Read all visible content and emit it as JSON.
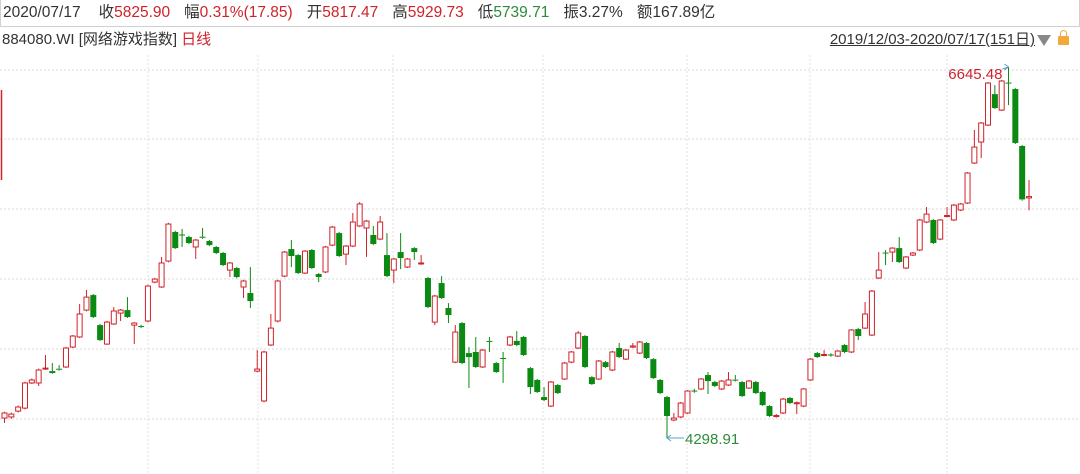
{
  "header": {
    "date": "2020/07/17",
    "fields": [
      {
        "label": "收",
        "value": "5825.90",
        "color": "#d0222a"
      },
      {
        "label": "幅",
        "value": "0.31%(17.85)",
        "color": "#d0222a"
      },
      {
        "label": "开",
        "value": "5817.47",
        "color": "#d0222a"
      },
      {
        "label": "高",
        "value": "5929.73",
        "color": "#d0222a"
      },
      {
        "label": "低",
        "value": "5739.71",
        "color": "#2e8b3a"
      },
      {
        "label": "振",
        "value": "3.27%",
        "color": "#333333"
      },
      {
        "label": "额",
        "value": "167.89亿",
        "color": "#333333"
      }
    ]
  },
  "subheader": {
    "symbol": "884080.WI [网络游戏指数]",
    "period": "日线",
    "range": "2019/12/03-2020/07/17(151日)",
    "dropdown_icon": "triangle-down-icon",
    "lock_icon": "lock-icon"
  },
  "chart_data": {
    "type": "candlestick",
    "up_color": "#d0222a",
    "down_color": "#0a8a12",
    "grid": true,
    "candle_format": [
      "open",
      "close",
      "high",
      "low"
    ],
    "annotations": {
      "max": {
        "label": "6645.48",
        "value": 6645.48,
        "index": 147
      },
      "min": {
        "label": "4298.91",
        "value": 4298.91,
        "index": 97
      }
    },
    "candles": [
      [
        4425,
        4457,
        4465,
        4394
      ],
      [
        4432,
        4450,
        4460,
        4420
      ],
      [
        4469,
        4495,
        4505,
        4460
      ],
      [
        4488,
        4647,
        4655,
        4480
      ],
      [
        4647,
        4666,
        4675,
        4640
      ],
      [
        4647,
        4729,
        4738,
        4628
      ],
      [
        4735,
        4741,
        4824,
        4730
      ],
      [
        4722,
        4710,
        4773,
        4705
      ],
      [
        4737,
        4733,
        4760,
        4725
      ],
      [
        4748,
        4868,
        4875,
        4742
      ],
      [
        4874,
        4944,
        4950,
        4868
      ],
      [
        4938,
        5083,
        5146,
        4932
      ],
      [
        5108,
        5190,
        5235,
        5100
      ],
      [
        5203,
        5064,
        5210,
        5058
      ],
      [
        5013,
        4918,
        5020,
        4912
      ],
      [
        4893,
        5032,
        5040,
        4888
      ],
      [
        5020,
        5102,
        5127,
        5014
      ],
      [
        5089,
        5108,
        5115,
        5039
      ],
      [
        5108,
        5064,
        5190,
        5058
      ],
      [
        5013,
        5026,
        5032,
        4893
      ],
      [
        5007,
        5001,
        5015,
        4995
      ],
      [
        5039,
        5260,
        5268,
        5030
      ],
      [
        5285,
        5304,
        5312,
        5278
      ],
      [
        5254,
        5406,
        5444,
        5248
      ],
      [
        5418,
        5652,
        5660,
        5410
      ],
      [
        5602,
        5500,
        5610,
        5494
      ],
      [
        5586,
        5580,
        5621,
        5507
      ],
      [
        5570,
        5532,
        5578,
        5525
      ],
      [
        5507,
        5551,
        5558,
        5431
      ],
      [
        5572,
        5566,
        5627,
        5558
      ],
      [
        5545,
        5519,
        5552,
        5512
      ],
      [
        5507,
        5469,
        5514,
        5462
      ],
      [
        5469,
        5393,
        5476,
        5386
      ],
      [
        5361,
        5406,
        5412,
        5317
      ],
      [
        5374,
        5317,
        5380,
        5310
      ],
      [
        5254,
        5292,
        5300,
        5184
      ],
      [
        5216,
        5165,
        5380,
        5121
      ],
      [
        4722,
        4735,
        4855,
        4715
      ],
      [
        4533,
        4843,
        4850,
        4525
      ],
      [
        4887,
        4994,
        5083,
        4880
      ],
      [
        5039,
        5292,
        5300,
        5030
      ],
      [
        5323,
        5475,
        5482,
        5316
      ],
      [
        5494,
        5450,
        5551,
        5380
      ],
      [
        5456,
        5342,
        5462,
        5336
      ],
      [
        5342,
        5481,
        5488,
        5336
      ],
      [
        5488,
        5374,
        5494,
        5368
      ],
      [
        5336,
        5317,
        5342,
        5285
      ],
      [
        5349,
        5507,
        5514,
        5342
      ],
      [
        5519,
        5633,
        5640,
        5512
      ],
      [
        5595,
        5450,
        5602,
        5444
      ],
      [
        5462,
        5513,
        5520,
        5393
      ],
      [
        5513,
        5665,
        5722,
        5506
      ],
      [
        5640,
        5779,
        5791,
        5633
      ],
      [
        5627,
        5671,
        5678,
        5444
      ],
      [
        5583,
        5526,
        5640,
        5519
      ],
      [
        5557,
        5665,
        5703,
        5550
      ],
      [
        5456,
        5323,
        5595,
        5316
      ],
      [
        5361,
        5431,
        5438,
        5279
      ],
      [
        5475,
        5437,
        5595,
        5367
      ],
      [
        5380,
        5431,
        5438,
        5374
      ],
      [
        5500,
        5475,
        5506,
        5425
      ],
      [
        5400,
        5406,
        5456,
        5394
      ],
      [
        5311,
        5127,
        5318,
        5120
      ],
      [
        5032,
        5197,
        5204,
        5013
      ],
      [
        5279,
        5184,
        5323,
        5178
      ],
      [
        5121,
        5077,
        5152,
        5026
      ],
      [
        4779,
        4969,
        5013,
        4772
      ],
      [
        5026,
        4773,
        5032,
        4766
      ],
      [
        4836,
        4811,
        4874,
        4615
      ],
      [
        4843,
        4748,
        4938,
        4742
      ],
      [
        4748,
        4855,
        4862,
        4742
      ],
      [
        4913,
        4907,
        4938,
        4843
      ],
      [
        4773,
        4716,
        4780,
        4710
      ],
      [
        4805,
        4799,
        4843,
        4647
      ],
      [
        4887,
        4938,
        4945,
        4880
      ],
      [
        4913,
        4887,
        4975,
        4880
      ],
      [
        4938,
        4824,
        4945,
        4818
      ],
      [
        4741,
        4621,
        4748,
        4577
      ],
      [
        4666,
        4590,
        4672,
        4584
      ],
      [
        4558,
        4539,
        4621,
        4532
      ],
      [
        4501,
        4653,
        4660,
        4494
      ],
      [
        4634,
        4583,
        4640,
        4577
      ],
      [
        4672,
        4773,
        4780,
        4666
      ],
      [
        4779,
        4843,
        4850,
        4772
      ],
      [
        4868,
        4963,
        4975,
        4862
      ],
      [
        4944,
        4748,
        4950,
        4742
      ],
      [
        4684,
        4640,
        4690,
        4634
      ],
      [
        4672,
        4786,
        4792,
        4666
      ],
      [
        4779,
        4748,
        4786,
        4742
      ],
      [
        4729,
        4843,
        4850,
        4722
      ],
      [
        4868,
        4811,
        4900,
        4805
      ],
      [
        4798,
        4855,
        4862,
        4792
      ],
      [
        4874,
        4881,
        4900,
        4868
      ],
      [
        4836,
        4906,
        4913,
        4830
      ],
      [
        4900,
        4805,
        4906,
        4798
      ],
      [
        4798,
        4678,
        4805,
        4672
      ],
      [
        4666,
        4583,
        4672,
        4577
      ],
      [
        4558,
        4438,
        4565,
        4298.91
      ],
      [
        4413,
        4425,
        4457,
        4405
      ],
      [
        4432,
        4520,
        4527,
        4425
      ],
      [
        4457,
        4596,
        4602,
        4450
      ],
      [
        4599,
        4593,
        4610,
        4585
      ],
      [
        4609,
        4672,
        4678,
        4602
      ],
      [
        4697,
        4659,
        4716,
        4577
      ],
      [
        4653,
        4628,
        4660,
        4621
      ],
      [
        4609,
        4659,
        4666,
        4602
      ],
      [
        4634,
        4666,
        4716,
        4628
      ],
      [
        4668,
        4663,
        4697,
        4656
      ],
      [
        4653,
        4564,
        4660,
        4558
      ],
      [
        4615,
        4659,
        4666,
        4609
      ],
      [
        4653,
        4583,
        4660,
        4577
      ],
      [
        4590,
        4507,
        4596,
        4501
      ],
      [
        4501,
        4438,
        4507,
        4432
      ],
      [
        4435,
        4441,
        4450,
        4428
      ],
      [
        4457,
        4545,
        4552,
        4450
      ],
      [
        4552,
        4520,
        4558,
        4513
      ],
      [
        4516,
        4522,
        4530,
        4450
      ],
      [
        4501,
        4609,
        4615,
        4494
      ],
      [
        4666,
        4798,
        4805,
        4660
      ],
      [
        4836,
        4811,
        4843,
        4805
      ],
      [
        4821,
        4827,
        4855,
        4815
      ],
      [
        4827,
        4821,
        4835,
        4813
      ],
      [
        4817,
        4849,
        4855,
        4811
      ],
      [
        4887,
        4843,
        4893,
        4836
      ],
      [
        4843,
        4982,
        4988,
        4836
      ],
      [
        4988,
        4944,
        4995,
        4918
      ],
      [
        4994,
        5083,
        5159,
        4988
      ],
      [
        4950,
        5228,
        5235,
        4944
      ],
      [
        5311,
        5361,
        5475,
        5304
      ],
      [
        5472,
        5466,
        5488,
        5393
      ],
      [
        5475,
        5500,
        5506,
        5412
      ],
      [
        5500,
        5412,
        5570,
        5406
      ],
      [
        5374,
        5444,
        5450,
        5368
      ],
      [
        5456,
        5469,
        5476,
        5450
      ],
      [
        5488,
        5678,
        5684,
        5481
      ],
      [
        5665,
        5715,
        5760,
        5658
      ],
      [
        5678,
        5532,
        5684,
        5526
      ],
      [
        5557,
        5678,
        5684,
        5550
      ],
      [
        5700,
        5706,
        5760,
        5694
      ],
      [
        5678,
        5772,
        5779,
        5671
      ],
      [
        5741,
        5779,
        5786,
        5734
      ],
      [
        5785,
        5975,
        5981,
        5779
      ],
      [
        6038,
        6139,
        6247,
        6032
      ],
      [
        6171,
        6291,
        6298,
        6070
      ],
      [
        6278,
        6544,
        6551,
        6272
      ],
      [
        6474,
        6386,
        6531,
        6380
      ],
      [
        6373,
        6557,
        6564,
        6367
      ],
      [
        6547,
        6541,
        6645.48,
        6405
      ],
      [
        6506,
        6165,
        6512,
        6158
      ],
      [
        6146,
        5808.05,
        6152,
        5800
      ],
      [
        5817.47,
        5825.9,
        5929.73,
        5739.71
      ]
    ]
  }
}
